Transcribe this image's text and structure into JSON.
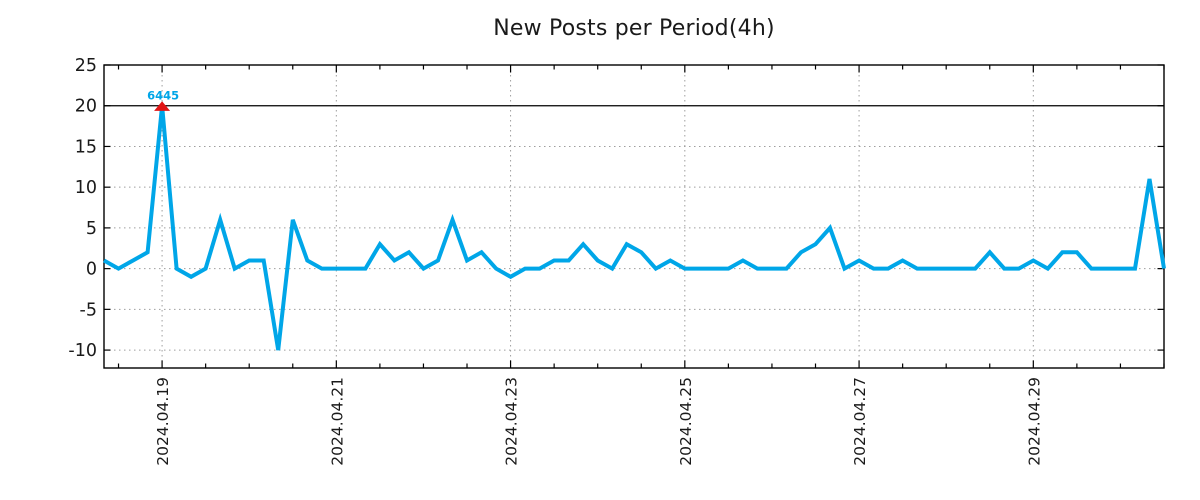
{
  "title": "New Posts per Period(4h)",
  "chart_data": {
    "type": "line",
    "title": "New Posts per Period(4h)",
    "x_axis": {
      "tick_labels": [
        "2024.04.19",
        "2024.04.21",
        "2024.04.23",
        "2024.04.25",
        "2024.04.27",
        "2024.04.29"
      ],
      "label_indices": [
        4,
        16,
        28,
        40,
        52,
        64
      ],
      "minor_tick_every": 3,
      "minor_tick_offset": 1,
      "period_hours": 4,
      "grid": true
    },
    "y_axis": {
      "tick_values": [
        25,
        20,
        15,
        10,
        5,
        0,
        -5,
        -10
      ],
      "range": [
        -12.2,
        25
      ],
      "grid_values": [
        15,
        10,
        5,
        0,
        -5,
        -10
      ],
      "solid_line_value": 20,
      "grid": true
    },
    "series": [
      {
        "name": "New Posts",
        "color": "#00A6E8",
        "values": [
          1,
          0,
          1,
          2,
          20,
          0,
          -1,
          0,
          6,
          0,
          1,
          1,
          -10,
          6,
          1,
          0,
          0,
          0,
          0,
          3,
          1,
          2,
          0,
          1,
          6,
          1,
          2,
          0,
          -1,
          0,
          0,
          1,
          1,
          3,
          1,
          0,
          3,
          2,
          0,
          1,
          0,
          0,
          0,
          0,
          1,
          0,
          0,
          0,
          2,
          3,
          5,
          0,
          1,
          0,
          0,
          1,
          0,
          0,
          0,
          0,
          0,
          2,
          0,
          0,
          1,
          0,
          2,
          2,
          0,
          0,
          0,
          0,
          11,
          0
        ]
      }
    ],
    "annotation": {
      "text": "6445",
      "value_index": 4,
      "display_value": 20,
      "text_color": "#00A6E8",
      "marker": "triangle-up",
      "marker_color": "#E01414"
    },
    "colors": {
      "grid": "#9e9e9e",
      "axis": "#000000",
      "title": "#1a1a1a",
      "tick_label": "#1a1a1a"
    }
  }
}
